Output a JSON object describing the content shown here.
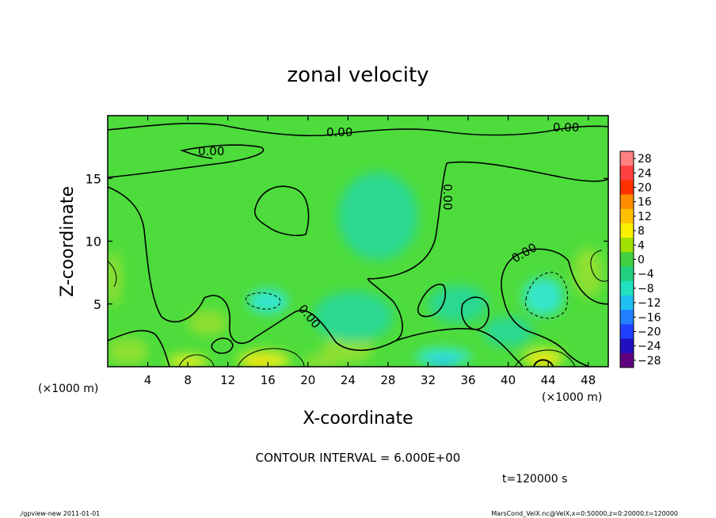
{
  "chart_data": {
    "type": "heatmap",
    "title": "zonal velocity",
    "xlabel": "X-coordinate",
    "ylabel": "Z-coordinate",
    "x_unit": "(×1000 m)",
    "y_unit": "(×1000 m)",
    "xlim": [
      0,
      50
    ],
    "ylim": [
      0,
      20
    ],
    "x_ticks": [
      4,
      8,
      12,
      16,
      20,
      24,
      28,
      32,
      36,
      40,
      44,
      48
    ],
    "y_ticks": [
      5,
      10,
      15
    ],
    "contour_interval_text": "CONTOUR INTERVAL = 6.000E+00",
    "contour_label": "0.00",
    "time_text": "t=120000 s",
    "colorbar": {
      "levels": [
        28,
        24,
        20,
        16,
        12,
        8,
        4,
        0,
        -4,
        -8,
        -12,
        -16,
        -20,
        -24,
        -28
      ],
      "labels": [
        "28",
        "24",
        "20",
        "16",
        "12",
        "8",
        "4",
        "0",
        "−4",
        "−8",
        "−12",
        "−16",
        "−20",
        "−24",
        "−28"
      ],
      "colors": [
        "#ff8080",
        "#ff4040",
        "#ff3000",
        "#ff8c00",
        "#ffc000",
        "#f8f000",
        "#a0e000",
        "#40d040",
        "#20d080",
        "#20e0c0",
        "#20c0f0",
        "#2080ff",
        "#2040ff",
        "#2010c0",
        "#600080"
      ]
    },
    "field_colors": {
      "background": "#4ddc3c",
      "positive_weak": "#8ee030",
      "positive_strong": "#d8ec20",
      "positive_peak": "#f4e000",
      "negative_weak": "#2cd890",
      "negative_strong": "#34e6cc",
      "negative_peak": "#28c8e6"
    }
  },
  "footer": {
    "left": "./gpview-new  2011-01-01",
    "right": "MarsCond_VelX.nc@VelX,x=0:50000,z=0:20000,t=120000"
  }
}
